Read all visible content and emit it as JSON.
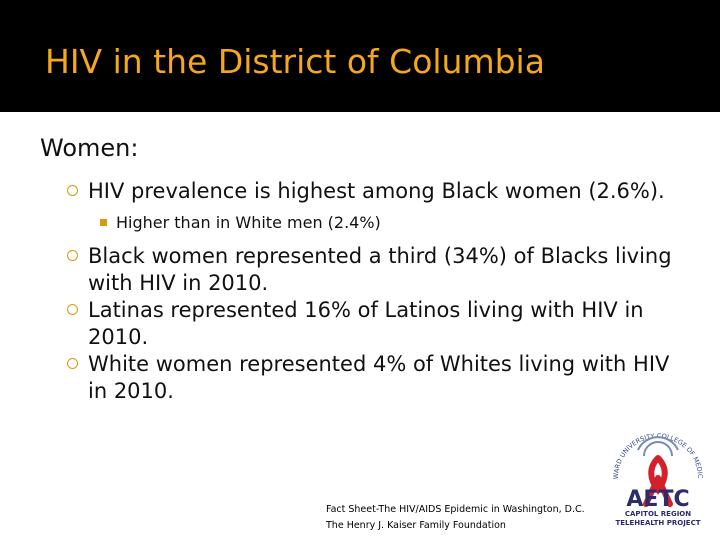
{
  "header": {
    "title": "HIV in the District of Columbia"
  },
  "body": {
    "heading": "Women:",
    "bullets": [
      {
        "text": "HIV prevalence is highest among Black women (2.6%).",
        "sub": [
          "Higher than in White men (2.4%)"
        ]
      },
      {
        "text": "Black women represented a third (34%) of Blacks living with HIV in 2010.",
        "sub": []
      },
      {
        "text": "Latinas represented 16% of Latinos living with HIV in 2010.",
        "sub": []
      },
      {
        "text": "White women represented 4% of Whites living with HIV in 2010.",
        "sub": []
      }
    ]
  },
  "footer": {
    "source": [
      "Fact Sheet-The HIV/AIDS Epidemic in Washington, D.C.",
      "The Henry J. Kaiser Family Foundation"
    ]
  },
  "logo": {
    "name": "AETC",
    "line1": "CAPITOL REGION",
    "line2": "TELEHEALTH PROJECT",
    "arc": "HOWARD UNIVERSITY COLLEGE OF MEDICINE"
  }
}
